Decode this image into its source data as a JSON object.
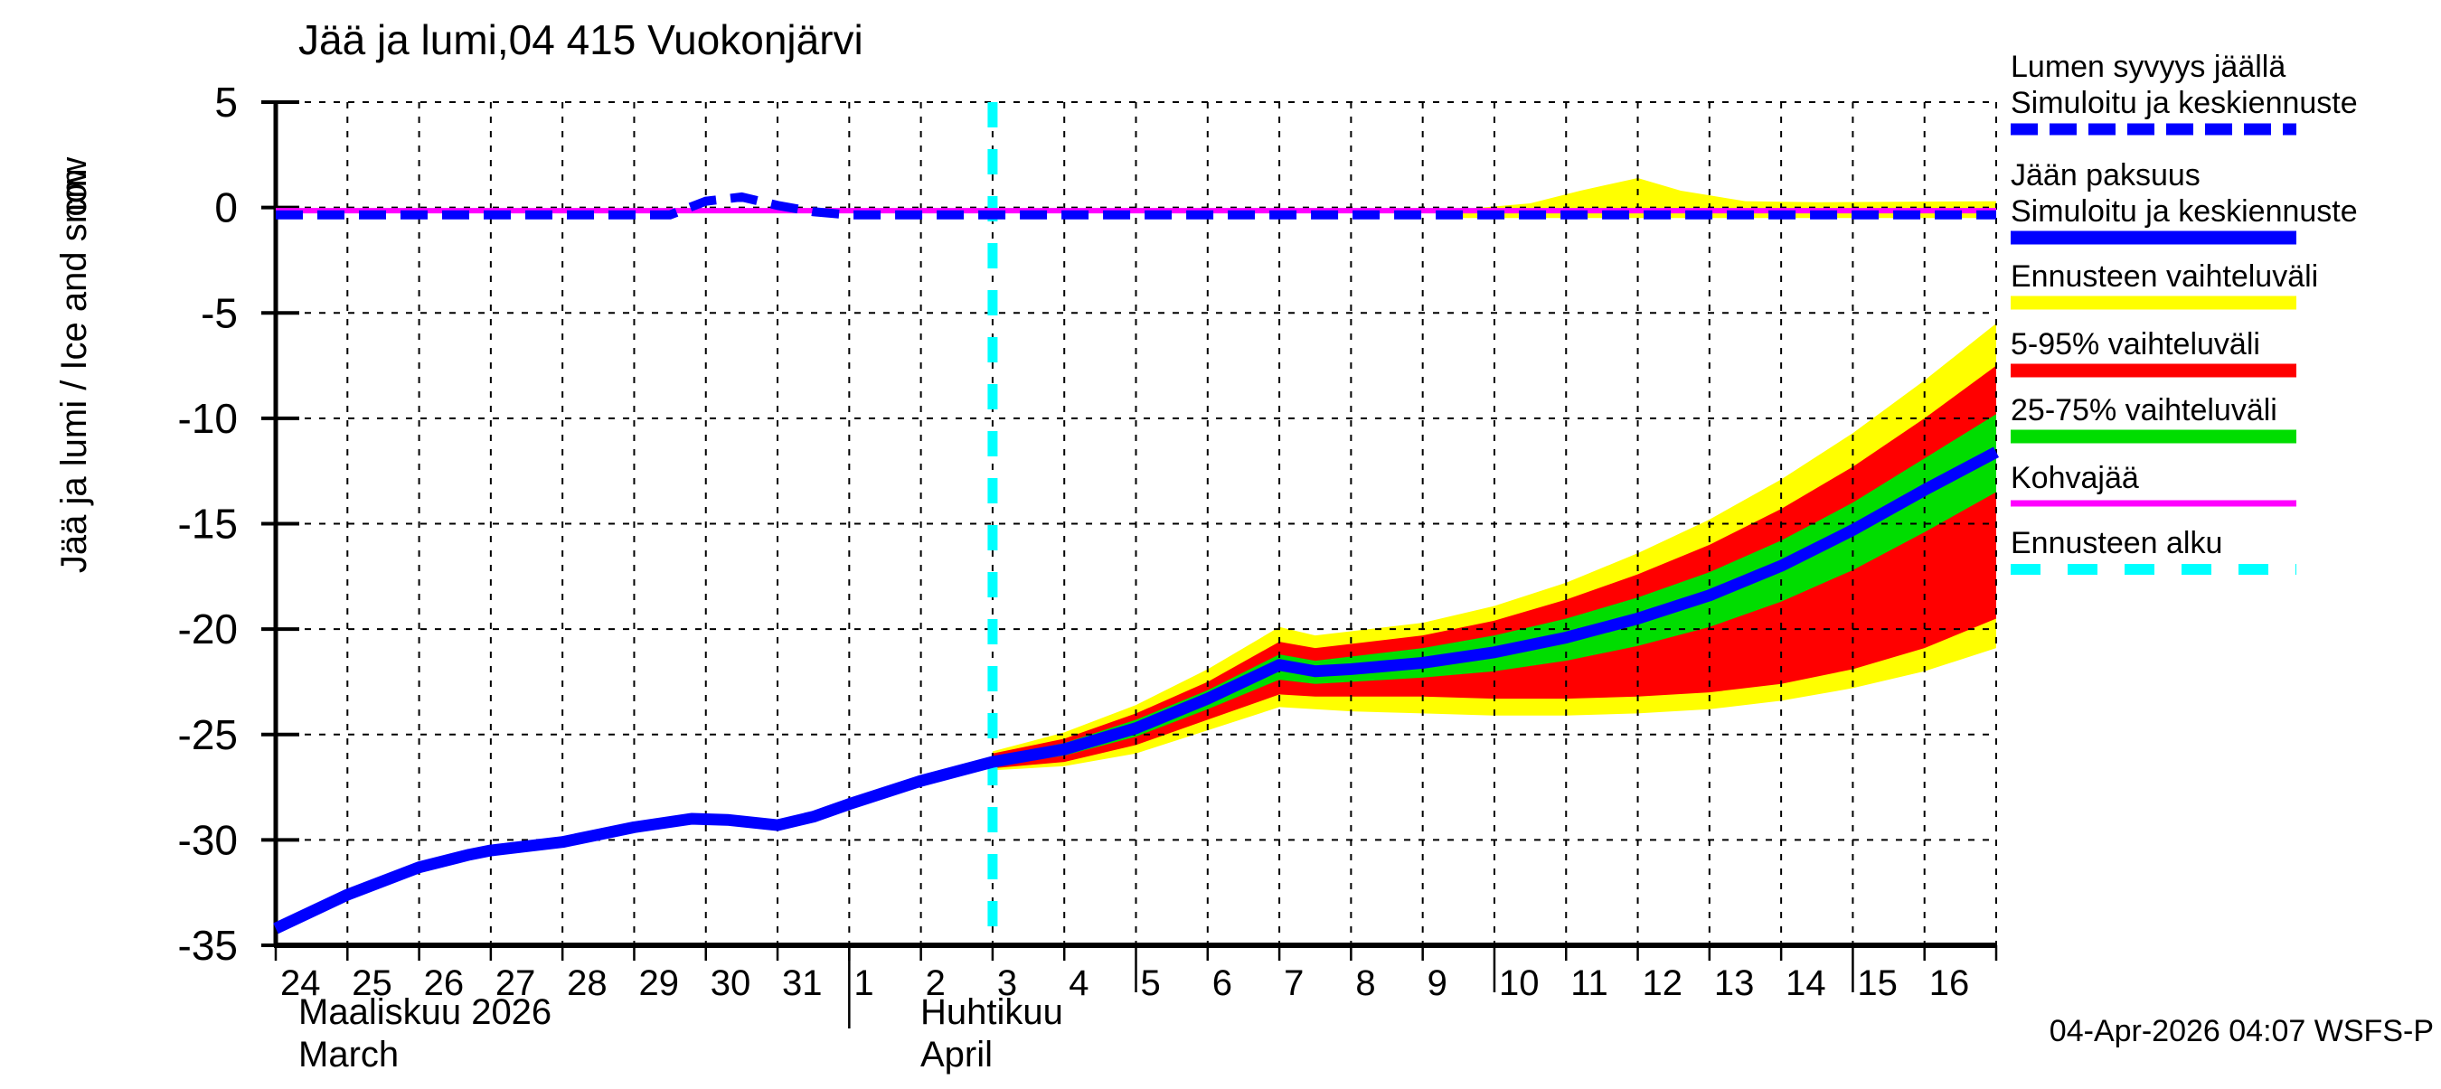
{
  "title": "Jää ja lumi,04 415 Vuokonjärvi",
  "y_axis": {
    "label": "Jää ja lumi / Ice and snow",
    "unit": "cm"
  },
  "x_axis": {
    "month1_line1": "Maaliskuu 2026",
    "month1_line2": "March",
    "month2_line1": "Huhtikuu",
    "month2_line2": "April"
  },
  "footer": {
    "timestamp": "04-Apr-2026 04:07 WSFS-P"
  },
  "colors": {
    "ice": "#0000ff",
    "snow": "#0000ff",
    "range_full": "#ffff00",
    "range_5_95": "#ff0000",
    "range_25_75": "#00dd00",
    "kohva": "#ff00ff",
    "forecast_start": "#00ffff",
    "grid": "#000000"
  },
  "legend": {
    "items": [
      {
        "line1": "Lumen syvyys jäällä",
        "line2": "Simuloitu ja keskiennuste"
      },
      {
        "line1": "Jään paksuus",
        "line2": "Simuloitu ja keskiennuste"
      },
      {
        "line1": "Ennusteen vaihteluväli"
      },
      {
        "line1": "5-95% vaihteluväli"
      },
      {
        "line1": "25-75% vaihteluväli"
      },
      {
        "line1": "Kohvajää"
      },
      {
        "line1": "Ennusteen alku"
      }
    ]
  },
  "chart_data": {
    "type": "line",
    "title": "Jää ja lumi,04 415 Vuokonjärvi",
    "ylabel": "Jää ja lumi / Ice and snow (cm)",
    "ylim": [
      -35,
      5
    ],
    "x_range": [
      "2026-03-24",
      "2026-04-17"
    ],
    "grid": true,
    "legend_position": "right",
    "axis": {
      "x_left": 305,
      "x_right": 2208,
      "y_top": 113,
      "y_bottom": 1046,
      "value_top": 5,
      "value_bottom": -35,
      "days_total": 24
    },
    "y_ticks": [
      5,
      0,
      -5,
      -10,
      -15,
      -20,
      -25,
      -30,
      -35
    ],
    "x_tick_labels": {
      "march": [
        24,
        25,
        26,
        27,
        28,
        29,
        30,
        31
      ],
      "april": [
        1,
        2,
        3,
        4,
        5,
        6,
        7,
        8,
        9,
        10,
        11,
        12,
        13,
        14,
        15,
        16
      ]
    },
    "long_tick_days": [
      12,
      17,
      22
    ],
    "month_separator_day": 8,
    "forecast_start_day": 10,
    "history": {
      "x_days_from_mar24": [
        0,
        1,
        2,
        2.7,
        3,
        4,
        5,
        5.8,
        6.3,
        7,
        7.5,
        8,
        9,
        10
      ],
      "ice_cm": [
        -34.2,
        -32.6,
        -31.3,
        -30.7,
        -30.5,
        -30.1,
        -29.4,
        -29.0,
        -29.05,
        -29.3,
        -28.9,
        -28.3,
        -27.2,
        -26.3
      ]
    },
    "forecast": {
      "x_days_from_mar24": [
        10,
        11,
        12,
        13,
        14,
        14.5,
        15,
        16,
        17,
        18,
        19,
        20,
        21,
        22,
        23,
        24
      ],
      "median": [
        -26.3,
        -25.7,
        -24.7,
        -23.3,
        -21.7,
        -22.0,
        -21.9,
        -21.6,
        -21.1,
        -20.4,
        -19.5,
        -18.4,
        -17.0,
        -15.3,
        -13.4,
        -11.6
      ],
      "p75": [
        -26.1,
        -25.4,
        -24.3,
        -22.9,
        -21.2,
        -21.5,
        -21.3,
        -20.9,
        -20.3,
        -19.5,
        -18.5,
        -17.3,
        -15.8,
        -14.0,
        -11.9,
        -9.8
      ],
      "p25": [
        -26.5,
        -26.0,
        -25.1,
        -23.8,
        -22.4,
        -22.6,
        -22.5,
        -22.3,
        -22.0,
        -21.5,
        -20.8,
        -19.9,
        -18.7,
        -17.2,
        -15.4,
        -13.5
      ],
      "p95": [
        -25.9,
        -25.2,
        -24.0,
        -22.5,
        -20.6,
        -20.9,
        -20.7,
        -20.3,
        -19.6,
        -18.6,
        -17.4,
        -16.0,
        -14.3,
        -12.3,
        -10.0,
        -7.5
      ],
      "p05": [
        -26.6,
        -26.3,
        -25.5,
        -24.3,
        -23.1,
        -23.2,
        -23.2,
        -23.2,
        -23.3,
        -23.3,
        -23.2,
        -23.0,
        -22.6,
        -21.9,
        -20.9,
        -19.5
      ],
      "max": [
        -25.8,
        -24.9,
        -23.6,
        -21.9,
        -19.9,
        -20.3,
        -20.1,
        -19.7,
        -18.9,
        -17.8,
        -16.4,
        -14.8,
        -12.9,
        -10.7,
        -8.2,
        -5.5
      ],
      "min": [
        -26.7,
        -26.5,
        -25.9,
        -24.8,
        -23.7,
        -23.8,
        -23.9,
        -24.0,
        -24.1,
        -24.1,
        -24.0,
        -23.8,
        -23.4,
        -22.8,
        -22.0,
        -20.9
      ]
    },
    "snow_on_ice": {
      "x_days_from_mar24": [
        0,
        5.5,
        6.0,
        6.5,
        7.0,
        7.5,
        8,
        24
      ],
      "cm": [
        -0.35,
        -0.35,
        0.3,
        0.5,
        0.1,
        -0.2,
        -0.35,
        -0.35
      ]
    },
    "kohva": {
      "x_days_from_mar24": [
        0,
        24
      ],
      "cm": [
        -0.15,
        -0.15
      ]
    },
    "snow_forecast_band": {
      "x_days_from_mar24": [
        16.5,
        17.5,
        18.2,
        19.0,
        19.6,
        20.5,
        21.5,
        24
      ],
      "top_cm": [
        -0.1,
        0.2,
        0.8,
        1.4,
        0.8,
        0.3,
        0.25,
        0.3
      ],
      "bottom_cm": -0.5
    }
  }
}
